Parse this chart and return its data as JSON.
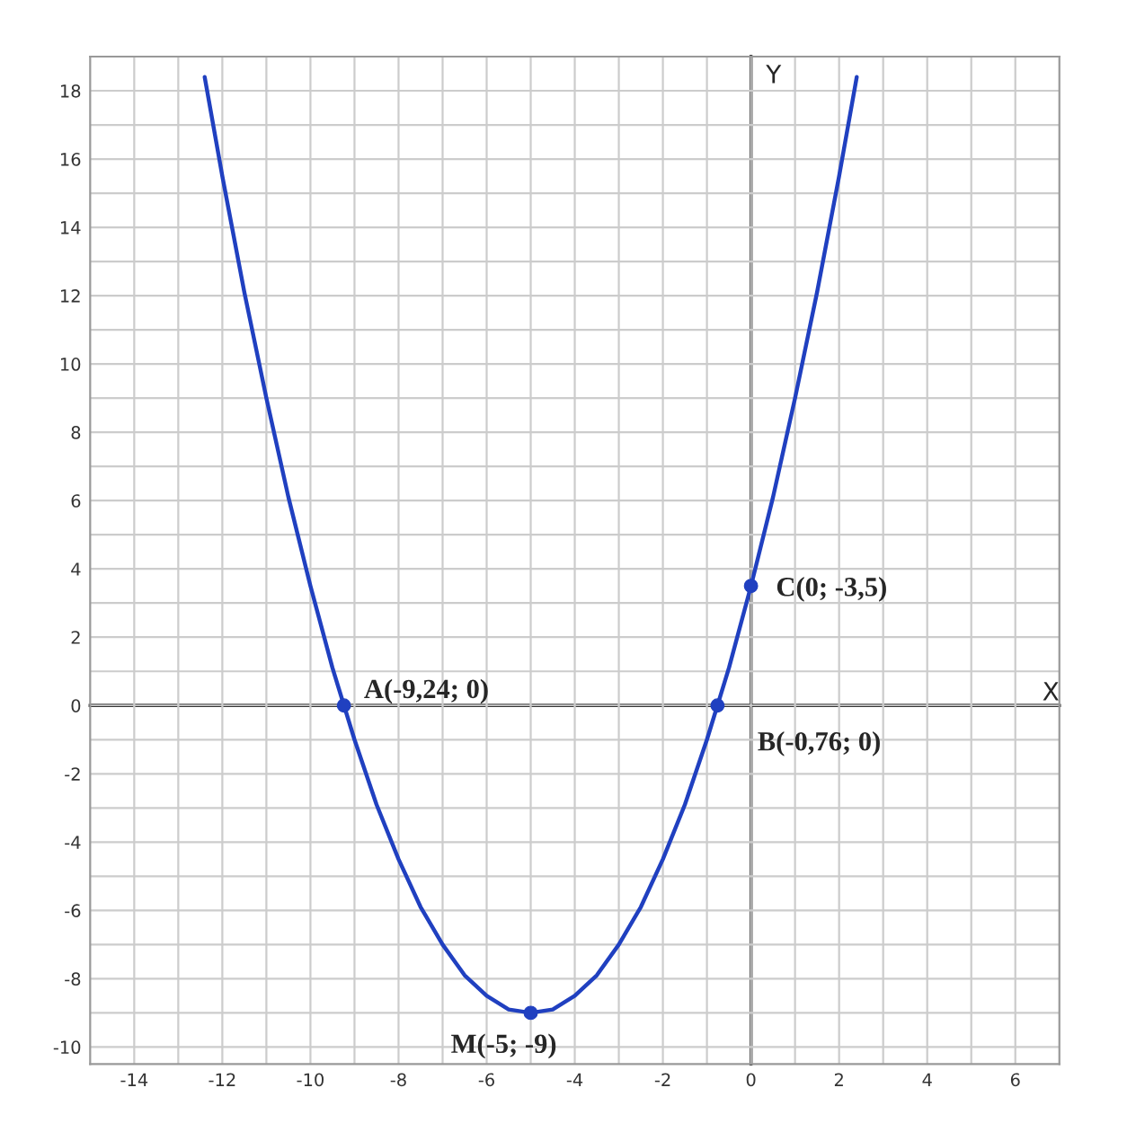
{
  "chart_data": {
    "type": "line",
    "xlabel": "X",
    "ylabel": "Y",
    "xlim": [
      -15,
      7
    ],
    "ylim": [
      -10.5,
      19
    ],
    "xticks": [
      -14,
      {
        "value": -13,
        "label": null
      },
      -12,
      {
        "value": -11,
        "label": null
      },
      -10,
      {
        "value": -9,
        "label": null
      },
      -8,
      {
        "value": -7,
        "label": null
      },
      -6,
      {
        "value": -5,
        "label": null
      },
      -4,
      {
        "value": -3,
        "label": null
      },
      -2,
      {
        "value": -1,
        "label": null
      },
      0,
      {
        "value": 1,
        "label": null
      },
      2,
      {
        "value": 3,
        "label": null
      },
      4,
      {
        "value": 5,
        "label": null
      },
      6
    ],
    "yticks": [
      -10,
      {
        "value": -9,
        "label": null
      },
      -8,
      {
        "value": -7,
        "label": null
      },
      -6,
      {
        "value": -5,
        "label": null
      },
      -4,
      {
        "value": -3,
        "label": null
      },
      -2,
      {
        "value": -1,
        "label": null
      },
      0,
      {
        "value": 1,
        "label": null
      },
      2,
      {
        "value": 3,
        "label": null
      },
      4,
      {
        "value": 5,
        "label": null
      },
      6,
      {
        "value": 7,
        "label": null
      },
      8,
      {
        "value": 9,
        "label": null
      },
      10,
      {
        "value": 11,
        "label": null
      },
      12,
      {
        "value": 13,
        "label": null
      },
      14,
      {
        "value": 15,
        "label": null
      },
      16,
      {
        "value": 17,
        "label": null
      },
      18
    ],
    "grid": true,
    "line_style": "solid",
    "series": [
      {
        "color": "#2040c0",
        "x": [
          -12.4,
          -12,
          -11.5,
          -11,
          -10.5,
          -10,
          -9.5,
          -9,
          -8.5,
          -8,
          -7.5,
          -7,
          -6.5,
          -6,
          -5.5,
          -5,
          -4.5,
          -4,
          -3.5,
          -3,
          -2.5,
          -2,
          -1.5,
          -1,
          -0.5,
          0,
          0.5,
          1,
          1.5,
          2,
          2.4
        ],
        "values": [
          18.4,
          15.5,
          12.1,
          9,
          6.1,
          3.5,
          1.1,
          -1,
          -2.9,
          -4.5,
          -5.9,
          -7,
          -7.9,
          -8.5,
          -8.9,
          -9,
          -8.9,
          -8.5,
          -7.9,
          -7,
          -5.9,
          -4.5,
          -2.9,
          -1,
          1.1,
          3.5,
          6.1,
          9,
          12.1,
          15.5,
          18.4
        ]
      },
      {
        "type": "scatter",
        "color": "#2040c0",
        "marker": "circle",
        "x": [
          -9.24,
          -0.76,
          0,
          -5
        ],
        "values": [
          0,
          0,
          3.5,
          -9
        ]
      }
    ],
    "annotations": [
      {
        "text": "A(-9,24; 0)",
        "x": -9.24,
        "y": 0
      },
      {
        "text": "B(-0,76; 0)",
        "x": -0.76,
        "y": 0
      },
      {
        "text": "C(0; -3,5)",
        "x": 0,
        "y": 3.5
      },
      {
        "text": "M(-5; -9)",
        "x": -5,
        "y": -9
      }
    ]
  }
}
